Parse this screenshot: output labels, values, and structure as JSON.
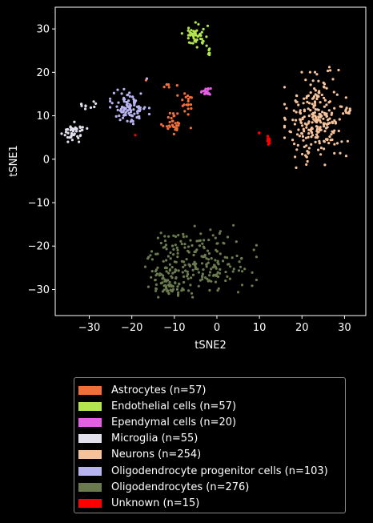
{
  "chart_data": {
    "type": "scatter",
    "xlabel": "tSNE2",
    "ylabel": "tSNE1",
    "xlim": [
      -38,
      35
    ],
    "ylim": [
      -36,
      35
    ],
    "xticks": [
      -30,
      -20,
      -10,
      0,
      10,
      20,
      30
    ],
    "yticks": [
      -30,
      -20,
      -10,
      0,
      10,
      20,
      30
    ],
    "xtick_labels": [
      "−30",
      "−20",
      "−10",
      "0",
      "10",
      "20",
      "30"
    ],
    "ytick_labels": [
      "−30",
      "−20",
      "−10",
      "0",
      "10",
      "20",
      "30"
    ],
    "grid": false,
    "legend_placement": "bottom",
    "background": "#000000",
    "series": [
      {
        "name": "Astrocytes (n=57)",
        "color": "#f36f3a",
        "count": 57,
        "clusters": [
          {
            "cx": -10.5,
            "cy": 8.5,
            "sx": 1.2,
            "sy": 1.4,
            "n": 30
          },
          {
            "cx": -7.5,
            "cy": 13.5,
            "sx": 0.8,
            "sy": 1.8,
            "n": 20
          },
          {
            "cx": -11.5,
            "cy": 17,
            "sx": 0.6,
            "sy": 0.3,
            "n": 5
          },
          {
            "cx": -16.5,
            "cy": 18.5,
            "sx": 0.2,
            "sy": 0.2,
            "n": 1
          },
          {
            "cx": -6.5,
            "cy": 7,
            "sx": 0.2,
            "sy": 0.2,
            "n": 1
          }
        ]
      },
      {
        "name": "Endothelial cells (n=57)",
        "color": "#b3e54e",
        "count": 57,
        "clusters": [
          {
            "cx": -5,
            "cy": 28.5,
            "sx": 1.4,
            "sy": 1.3,
            "n": 50
          },
          {
            "cx": -2,
            "cy": 25,
            "sx": 0.3,
            "sy": 0.7,
            "n": 7
          }
        ]
      },
      {
        "name": "Ependymal cells (n=20)",
        "color": "#e35fe3",
        "count": 20,
        "clusters": [
          {
            "cx": -2.5,
            "cy": 15.5,
            "sx": 0.5,
            "sy": 0.5,
            "n": 20
          }
        ]
      },
      {
        "name": "Microglia (n=55)",
        "color": "#e3e0ee",
        "count": 55,
        "clusters": [
          {
            "cx": -33.5,
            "cy": 6.3,
            "sx": 1.3,
            "sy": 1.0,
            "n": 45
          },
          {
            "cx": -30.5,
            "cy": 12.5,
            "sx": 1.2,
            "sy": 0.6,
            "n": 10
          }
        ]
      },
      {
        "name": "Neurons (n=254)",
        "color": "#f6c29a",
        "count": 254,
        "clusters": [
          {
            "cx": 23.5,
            "cy": 9,
            "sx": 3.3,
            "sy": 4.8,
            "n": 240
          },
          {
            "cx": 30.5,
            "cy": 11,
            "sx": 0.8,
            "sy": 0.6,
            "n": 10
          },
          {
            "cx": 26.5,
            "cy": 20.5,
            "sx": 1.2,
            "sy": 0.6,
            "n": 4
          }
        ]
      },
      {
        "name": "Oligodendrocyte progenitor cells (n=103)",
        "color": "#b7b3ee",
        "count": 103,
        "clusters": [
          {
            "cx": -20.5,
            "cy": 12,
            "sx": 2.0,
            "sy": 1.8,
            "n": 102
          },
          {
            "cx": -16.5,
            "cy": 18.5,
            "sx": 0.2,
            "sy": 0.2,
            "n": 1
          }
        ]
      },
      {
        "name": "Oligodendrocytes (n=276)",
        "color": "#6b7a4e",
        "count": 276,
        "clusters": [
          {
            "cx": -4.5,
            "cy": -23.5,
            "sx": 6.0,
            "sy": 3.6,
            "n": 220
          },
          {
            "cx": -11.5,
            "cy": -28.5,
            "sx": 2.0,
            "sy": 1.5,
            "n": 56
          }
        ]
      },
      {
        "name": "Unknown (n=15)",
        "color": "#ff0000",
        "count": 15,
        "clusters": [
          {
            "cx": 12,
            "cy": 4.2,
            "sx": 0.25,
            "sy": 0.5,
            "n": 12
          },
          {
            "cx": 10,
            "cy": 6,
            "sx": 0.2,
            "sy": 0.2,
            "n": 2
          },
          {
            "cx": -19,
            "cy": 6,
            "sx": 0.2,
            "sy": 0.2,
            "n": 1
          }
        ]
      }
    ]
  }
}
